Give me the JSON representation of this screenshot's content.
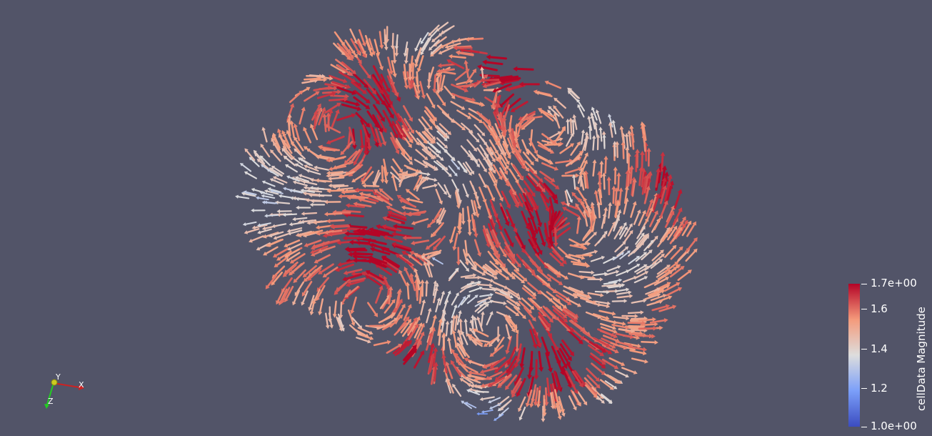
{
  "scene": {
    "background_color": "#525468",
    "representation": "vector-glyphs",
    "colored_by": "cellData Magnitude"
  },
  "colorbar": {
    "title": "cellData Magnitude",
    "range": [
      1.0,
      1.7
    ],
    "labels": {
      "max": "1.7e+00",
      "t16": "1.6",
      "t14": "1.4",
      "t12": "1.2",
      "min": "1.0e+00"
    },
    "colormap": "Cool to Warm",
    "colors": {
      "low": "#3b4cc0",
      "mid": "#dddddd",
      "high": "#b40426"
    }
  },
  "axes": {
    "x_label": "X",
    "y_label": "Y",
    "z_label": "Z",
    "x_color": "#cc2222",
    "y_color": "#cccc22",
    "z_color": "#22cc22"
  }
}
